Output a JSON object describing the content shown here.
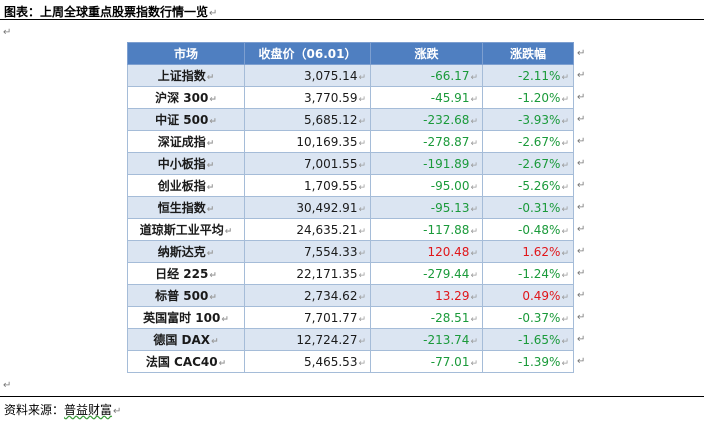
{
  "title": "图表：上周全球重点股票指数行情一览",
  "paragraph_mark": "↵",
  "cell_mark": "↵",
  "source_label": "资料来源：",
  "source_name": "普益财富",
  "colors": {
    "header_bg": "#4f7fc1",
    "band": "#dbe5f2",
    "up": "#e0161a",
    "down": "#1a9a3a"
  },
  "table": {
    "headers": [
      "市场",
      "收盘价（06.01）",
      "涨跌",
      "涨跌幅"
    ],
    "rows": [
      {
        "name": "上证指数",
        "close": "3,075.14",
        "change": "-66.17",
        "pct": "-2.11%",
        "dir": "down"
      },
      {
        "name": "沪深 300",
        "close": "3,770.59",
        "change": "-45.91",
        "pct": "-1.20%",
        "dir": "down"
      },
      {
        "name": "中证 500",
        "close": "5,685.12",
        "change": "-232.68",
        "pct": "-3.93%",
        "dir": "down"
      },
      {
        "name": "深证成指",
        "close": "10,169.35",
        "change": "-278.87",
        "pct": "-2.67%",
        "dir": "down"
      },
      {
        "name": "中小板指",
        "close": "7,001.55",
        "change": "-191.89",
        "pct": "-2.67%",
        "dir": "down"
      },
      {
        "name": "创业板指",
        "close": "1,709.55",
        "change": "-95.00",
        "pct": "-5.26%",
        "dir": "down"
      },
      {
        "name": "恒生指数",
        "close": "30,492.91",
        "change": "-95.13",
        "pct": "-0.31%",
        "dir": "down"
      },
      {
        "name": "道琼斯工业平均",
        "close": "24,635.21",
        "change": "-117.88",
        "pct": "-0.48%",
        "dir": "down"
      },
      {
        "name": "纳斯达克",
        "close": "7,554.33",
        "change": "120.48",
        "pct": "1.62%",
        "dir": "up"
      },
      {
        "name": "日经 225",
        "close": "22,171.35",
        "change": "-279.44",
        "pct": "-1.24%",
        "dir": "down"
      },
      {
        "name": "标普 500",
        "close": "2,734.62",
        "change": "13.29",
        "pct": "0.49%",
        "dir": "up"
      },
      {
        "name": "英国富时 100",
        "close": "7,701.77",
        "change": "-28.51",
        "pct": "-0.37%",
        "dir": "down"
      },
      {
        "name": "德国 DAX",
        "close": "12,724.27",
        "change": "-213.74",
        "pct": "-1.65%",
        "dir": "down"
      },
      {
        "name": "法国 CAC40",
        "close": "5,465.53",
        "change": "-77.01",
        "pct": "-1.39%",
        "dir": "down"
      }
    ]
  }
}
